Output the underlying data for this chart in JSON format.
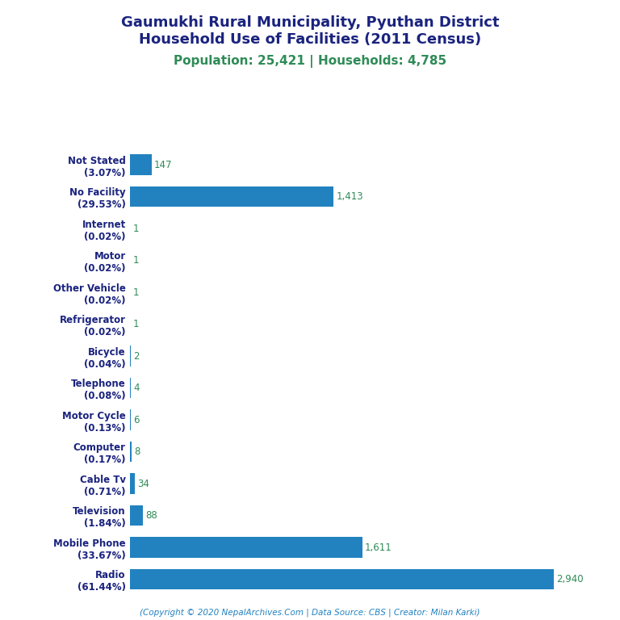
{
  "title_line1": "Gaumukhi Rural Municipality, Pyuthan District",
  "title_line2": "Household Use of Facilities (2011 Census)",
  "subtitle": "Population: 25,421 | Households: 4,785",
  "footer": "(Copyright © 2020 NepalArchives.Com | Data Source: CBS | Creator: Milan Karki)",
  "categories": [
    "Not Stated\n(3.07%)",
    "No Facility\n(29.53%)",
    "Internet\n(0.02%)",
    "Motor\n(0.02%)",
    "Other Vehicle\n(0.02%)",
    "Refrigerator\n(0.02%)",
    "Bicycle\n(0.04%)",
    "Telephone\n(0.08%)",
    "Motor Cycle\n(0.13%)",
    "Computer\n(0.17%)",
    "Cable Tv\n(0.71%)",
    "Television\n(1.84%)",
    "Mobile Phone\n(33.67%)",
    "Radio\n(61.44%)"
  ],
  "values": [
    147,
    1413,
    1,
    1,
    1,
    1,
    2,
    4,
    6,
    8,
    34,
    88,
    1611,
    2940
  ],
  "bar_color": "#2282c0",
  "value_color": "#2e8b57",
  "title_color": "#1a237e",
  "subtitle_color": "#2e8b57",
  "footer_color": "#2282c0",
  "background_color": "#ffffff",
  "xlim": [
    0,
    3100
  ]
}
